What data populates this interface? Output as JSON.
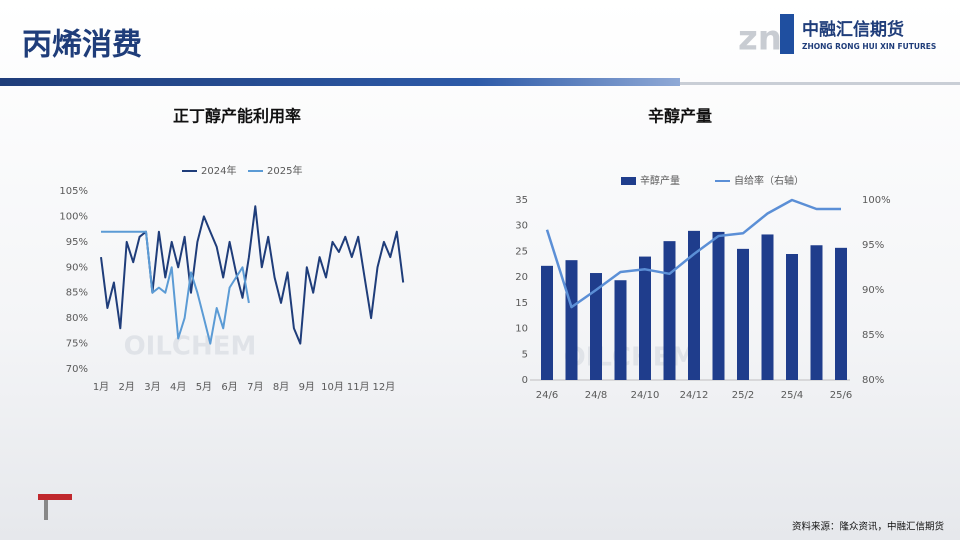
{
  "header": {
    "title": "丙烯消费",
    "logo_name": "中融汇信期货",
    "logo_en": "ZHONG RONG HUI XIN FUTURES"
  },
  "source": "资料来源：隆众资讯，中融汇信期货",
  "chart_data": [
    {
      "type": "line",
      "title": "正丁醇产能利用率",
      "watermark": "OILCHEM",
      "legend": "top",
      "categories": [
        "1月",
        null,
        null,
        null,
        "2月",
        null,
        null,
        null,
        "3月",
        null,
        null,
        null,
        "4月",
        null,
        null,
        null,
        "5月",
        null,
        null,
        null,
        "6月",
        null,
        null,
        null,
        "7月",
        null,
        null,
        null,
        "8月",
        null,
        null,
        null,
        "9月",
        null,
        null,
        null,
        "10月",
        null,
        null,
        null,
        "11月",
        null,
        null,
        null,
        "12月",
        null,
        null,
        null
      ],
      "series": [
        {
          "name": "2024年",
          "color": "#1f3d7a",
          "values": [
            92,
            82,
            87,
            78,
            95,
            91,
            96,
            97,
            85,
            97,
            88,
            95,
            90,
            96,
            85,
            95,
            100,
            97,
            94,
            88,
            95,
            89,
            84,
            92,
            102,
            90,
            96,
            88,
            83,
            89,
            78,
            75,
            90,
            85,
            92,
            88,
            95,
            93,
            96,
            92,
            96,
            88,
            80,
            90,
            95,
            92,
            97,
            87
          ]
        },
        {
          "name": "2025年",
          "color": "#5b9bd5",
          "values": [
            97,
            97,
            97,
            97,
            97,
            97,
            97,
            97,
            85,
            86,
            85,
            90,
            76,
            80,
            89,
            85,
            80,
            75,
            82,
            78,
            86,
            88,
            90,
            83,
            null,
            null,
            null,
            null,
            null,
            null,
            null,
            null,
            null,
            null,
            null,
            null,
            null,
            null,
            null,
            null,
            null,
            null,
            null,
            null,
            null,
            null,
            null,
            null
          ]
        }
      ],
      "ylim": [
        70,
        105
      ],
      "yticks": [
        {
          "value": 70,
          "label": "70%"
        },
        {
          "value": 75,
          "label": "75%"
        },
        {
          "value": 80,
          "label": "80%"
        },
        {
          "value": 85,
          "label": "85%"
        },
        {
          "value": 90,
          "label": "90%"
        },
        {
          "value": 95,
          "label": "95%"
        },
        {
          "value": 100,
          "label": "100%"
        },
        {
          "value": 105,
          "label": "105%"
        }
      ]
    },
    {
      "type": "bar",
      "title": "辛醇产量",
      "watermark": "OILCHEM",
      "legend": "top",
      "categories": [
        "24/6",
        null,
        "24/8",
        null,
        "24/10",
        null,
        "24/12",
        null,
        "25/2",
        null,
        "25/4",
        null,
        "25/6"
      ],
      "series": [
        {
          "name": "辛醇产量",
          "type": "bar",
          "color": "#1f3d8c",
          "values": [
            22.2,
            23.3,
            20.8,
            19.4,
            24.0,
            27.0,
            29.0,
            28.8,
            25.5,
            28.3,
            24.5,
            26.2,
            25.7
          ]
        },
        {
          "name": "自给率（右轴）",
          "type": "line",
          "axis": "y2",
          "color": "#5b8fd6",
          "values": [
            96.7,
            88.1,
            90.0,
            92.0,
            92.3,
            91.8,
            94.0,
            96.0,
            96.3,
            98.5,
            100.0,
            99.0,
            99.0
          ]
        }
      ],
      "ylim": [
        0,
        35
      ],
      "yticks": [
        0,
        5,
        10,
        15,
        20,
        25,
        30,
        35
      ],
      "y2lim": [
        80,
        100
      ],
      "y2ticks": [
        {
          "value": 80,
          "label": "80%"
        },
        {
          "value": 85,
          "label": "85%"
        },
        {
          "value": 90,
          "label": "90%"
        },
        {
          "value": 95,
          "label": "95%"
        },
        {
          "value": 100,
          "label": "100%"
        }
      ]
    }
  ]
}
